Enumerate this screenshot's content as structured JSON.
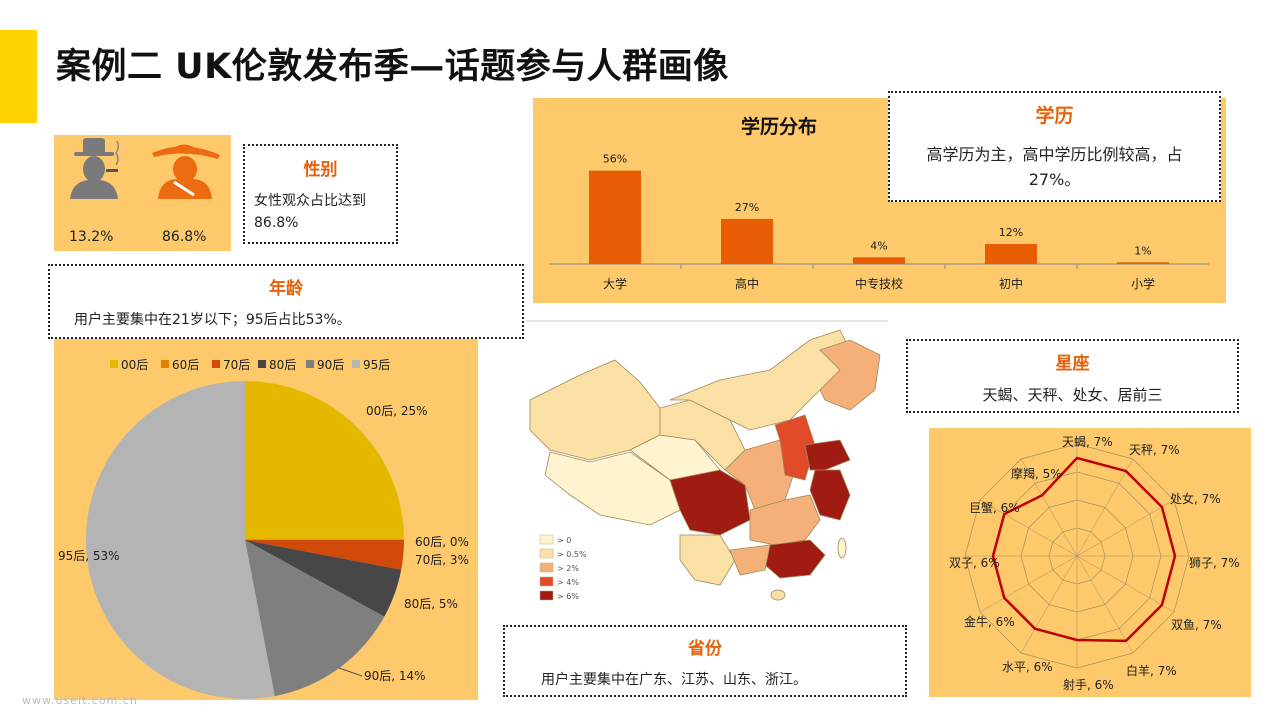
{
  "title": "案例二  UK伦敦发布季—话题参与人群画像",
  "gender": {
    "male_pct": "13.2%",
    "female_pct": "86.8%",
    "box_title": "性别",
    "box_text": "女性观众占比达到86.8%",
    "icons": [
      "male-figure-icon",
      "female-figure-icon"
    ]
  },
  "age": {
    "box_title": "年龄",
    "box_text": "用户主要集中在21岁以下；95后占比53%。"
  },
  "education": {
    "box_title": "学历",
    "box_text": "高学历为主，高中学历比例较高，占27%。"
  },
  "province": {
    "box_title": "省份",
    "box_text": "用户主要集中在广东、江苏、山东、浙江。",
    "legend": [
      {
        "label": "> 0",
        "color": "#fff4cf"
      },
      {
        "label": "> 0.5%",
        "color": "#fbe0a6"
      },
      {
        "label": "> 2%",
        "color": "#f5b07a"
      },
      {
        "label": "> 4%",
        "color": "#e24a2a"
      },
      {
        "label": "> 6%",
        "color": "#a01b12"
      }
    ]
  },
  "zodiac": {
    "box_title": "星座",
    "box_text": "天蝎、天秤、处女、居前三"
  },
  "watermark": "www.useit.com.cn",
  "colors": {
    "accent": "#ffd200",
    "panel": "#fdc96b",
    "orange": "#e8600a",
    "dark_red": "#c00000"
  },
  "chart_data": [
    {
      "type": "bar",
      "title": "学历分布",
      "categories": [
        "大学",
        "高中",
        "中专技校",
        "初中",
        "小学"
      ],
      "values": [
        56,
        27,
        4,
        12,
        1
      ],
      "value_labels": [
        "56%",
        "27%",
        "4%",
        "12%",
        "1%"
      ],
      "ylim": [
        0,
        60
      ],
      "bar_color": "#e85d04"
    },
    {
      "type": "pie",
      "legend": [
        "00后",
        "60后",
        "70后",
        "80后",
        "90后",
        "95后"
      ],
      "legend_position": "top",
      "slices": [
        {
          "name": "00后",
          "value": 25,
          "label": "00后, 25%",
          "color": "#e5b800"
        },
        {
          "name": "60后",
          "value": 0,
          "label": "60后, 0%",
          "color": "#e08000"
        },
        {
          "name": "70后",
          "value": 3,
          "label": "70后, 3%",
          "color": "#d24a0a"
        },
        {
          "name": "80后",
          "value": 5,
          "label": "80后, 5%",
          "color": "#474747"
        },
        {
          "name": "90后",
          "value": 14,
          "label": "90后, 14%",
          "color": "#7f7f7f"
        },
        {
          "name": "95后",
          "value": 53,
          "label": "95后, 53%",
          "color": "#b4b4b4"
        }
      ]
    },
    {
      "type": "radar",
      "categories": [
        "天蝎",
        "天秤",
        "处女",
        "狮子",
        "双鱼",
        "白羊",
        "射手",
        "水平",
        "金牛",
        "双子",
        "巨蟹",
        "摩羯"
      ],
      "values": [
        7,
        7,
        7,
        7,
        7,
        7,
        6,
        6,
        6,
        6,
        6,
        5
      ],
      "labels": [
        "天蝎, 7%",
        "天秤, 7%",
        "处女, 7%",
        "狮子, 7%",
        "双鱼, 7%",
        "白羊, 7%",
        "射手, 6%",
        "水平, 6%",
        "金牛, 6%",
        "双子, 6%",
        "巨蟹, 6%",
        "摩羯, 5%"
      ],
      "rmax": 8,
      "line_color": "#c00000"
    }
  ]
}
